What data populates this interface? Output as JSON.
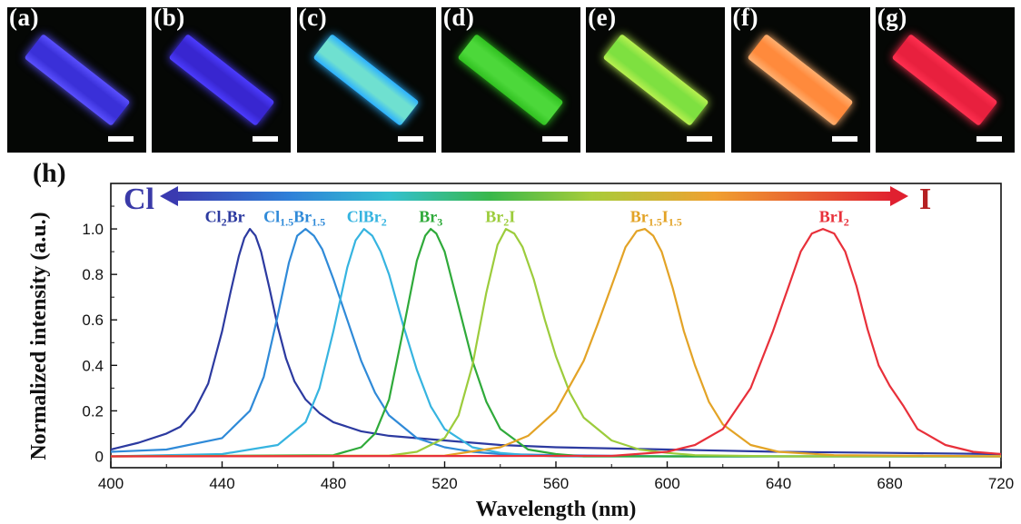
{
  "photo_panels": [
    {
      "label": "(a)",
      "color": "#3a30d8",
      "glow": "#5a50ff"
    },
    {
      "label": "(b)",
      "color": "#3826d0",
      "glow": "#4c3cff"
    },
    {
      "label": "(c)",
      "color": "#6fe0d0",
      "glow": "#2bb0ff"
    },
    {
      "label": "(d)",
      "color": "#4cd83a",
      "glow": "#30c020"
    },
    {
      "label": "(e)",
      "color": "#7ee040",
      "glow": "#b8f050"
    },
    {
      "label": "(f)",
      "color": "#ff8a3c",
      "glow": "#ffb070"
    },
    {
      "label": "(g)",
      "color": "#e8203e",
      "glow": "#ff3050"
    }
  ],
  "chart_panel_label": "(h)",
  "arrow": {
    "left_label": "Cl",
    "right_label": "I",
    "left_color": "#3a3aa8",
    "right_color": "#b52022"
  },
  "chart_data": {
    "type": "line",
    "xlabel": "Wavelength (nm)",
    "ylabel": "Normalized intensity (a.u.)",
    "xlim": [
      400,
      720
    ],
    "ylim": [
      -0.05,
      1.2
    ],
    "xticks": [
      400,
      440,
      480,
      520,
      560,
      600,
      640,
      680,
      720
    ],
    "yticks": [
      0,
      0.2,
      0.4,
      0.6,
      0.8,
      1.0
    ],
    "ytick_labels": [
      "0",
      "0.2",
      "0.4",
      "0.6",
      "0.8",
      "1.0"
    ],
    "grid": false,
    "series": [
      {
        "name": "Cl2Br",
        "label_parts": [
          [
            "Cl",
            ""
          ],
          [
            "2",
            "sub"
          ],
          [
            "Br",
            ""
          ]
        ],
        "color": "#2c3aa0",
        "x": [
          400,
          410,
          420,
          425,
          430,
          435,
          440,
          443,
          446,
          448,
          450,
          452,
          454,
          457,
          460,
          463,
          466,
          470,
          475,
          480,
          490,
          500,
          520,
          540,
          560,
          600,
          640,
          680,
          720
        ],
        "y": [
          0.03,
          0.06,
          0.1,
          0.13,
          0.2,
          0.32,
          0.55,
          0.72,
          0.88,
          0.96,
          1.0,
          0.97,
          0.9,
          0.74,
          0.57,
          0.43,
          0.33,
          0.25,
          0.19,
          0.15,
          0.11,
          0.09,
          0.07,
          0.05,
          0.04,
          0.03,
          0.02,
          0.015,
          0.01
        ]
      },
      {
        "name": "Cl1.5Br1.5",
        "label_parts": [
          [
            "Cl",
            ""
          ],
          [
            "1.5",
            "sub"
          ],
          [
            "Br",
            ""
          ],
          [
            "1.5",
            "sub"
          ]
        ],
        "color": "#2f8ad8",
        "x": [
          400,
          420,
          440,
          450,
          455,
          460,
          464,
          467,
          470,
          473,
          476,
          480,
          485,
          490,
          495,
          500,
          510,
          520,
          530,
          540,
          560,
          600,
          720
        ],
        "y": [
          0.02,
          0.03,
          0.08,
          0.2,
          0.35,
          0.62,
          0.85,
          0.97,
          1.0,
          0.97,
          0.91,
          0.78,
          0.6,
          0.42,
          0.28,
          0.18,
          0.08,
          0.04,
          0.02,
          0.01,
          0.005,
          0.0,
          0.0
        ]
      },
      {
        "name": "ClBr2",
        "label_parts": [
          [
            "ClBr",
            ""
          ],
          [
            "2",
            "sub"
          ]
        ],
        "color": "#36b4e0",
        "x": [
          400,
          440,
          460,
          470,
          475,
          480,
          485,
          488,
          491,
          494,
          497,
          500,
          505,
          510,
          515,
          520,
          530,
          540,
          550,
          560,
          600,
          720
        ],
        "y": [
          0.0,
          0.01,
          0.05,
          0.15,
          0.3,
          0.55,
          0.83,
          0.95,
          1.0,
          0.97,
          0.9,
          0.8,
          0.58,
          0.38,
          0.22,
          0.12,
          0.04,
          0.015,
          0.005,
          0.0,
          0.0,
          0.0
        ]
      },
      {
        "name": "Br3",
        "label_parts": [
          [
            "Br",
            ""
          ],
          [
            "3",
            "sub"
          ]
        ],
        "color": "#2faa3a",
        "x": [
          400,
          480,
          490,
          495,
          500,
          505,
          510,
          513,
          515,
          517,
          520,
          525,
          530,
          535,
          540,
          550,
          560,
          570,
          720
        ],
        "y": [
          0.0,
          0.005,
          0.04,
          0.1,
          0.25,
          0.55,
          0.86,
          0.97,
          1.0,
          0.98,
          0.9,
          0.66,
          0.42,
          0.24,
          0.12,
          0.03,
          0.01,
          0.0,
          0.0
        ]
      },
      {
        "name": "Br2I",
        "label_parts": [
          [
            "Br",
            ""
          ],
          [
            "2",
            "sub"
          ],
          [
            "I",
            ""
          ]
        ],
        "color": "#9ccc3c",
        "x": [
          400,
          500,
          510,
          520,
          525,
          530,
          535,
          539,
          542,
          545,
          548,
          552,
          556,
          560,
          565,
          570,
          580,
          590,
          600,
          610,
          640,
          720
        ],
        "y": [
          0.0,
          0.003,
          0.02,
          0.08,
          0.18,
          0.4,
          0.72,
          0.93,
          1.0,
          0.98,
          0.92,
          0.78,
          0.6,
          0.44,
          0.28,
          0.17,
          0.07,
          0.03,
          0.015,
          0.005,
          0.0,
          0.0
        ]
      },
      {
        "name": "Br1.5I1.5",
        "label_parts": [
          [
            "Br",
            ""
          ],
          [
            "1.5",
            "sub"
          ],
          [
            "I",
            ""
          ],
          [
            "1.5",
            "sub"
          ]
        ],
        "color": "#e3a326",
        "x": [
          400,
          520,
          540,
          550,
          560,
          570,
          575,
          580,
          585,
          589,
          592,
          595,
          598,
          602,
          606,
          610,
          615,
          620,
          630,
          640,
          660,
          720
        ],
        "y": [
          0.0,
          0.003,
          0.04,
          0.09,
          0.2,
          0.42,
          0.58,
          0.75,
          0.92,
          0.99,
          1.0,
          0.97,
          0.9,
          0.74,
          0.55,
          0.4,
          0.24,
          0.14,
          0.05,
          0.02,
          0.005,
          0.0
        ]
      },
      {
        "name": "BrI2",
        "label_parts": [
          [
            "BrI",
            ""
          ],
          [
            "2",
            "sub"
          ]
        ],
        "color": "#e8303a",
        "x": [
          400,
          580,
          600,
          610,
          620,
          630,
          638,
          644,
          648,
          652,
          656,
          660,
          664,
          668,
          672,
          676,
          680,
          685,
          690,
          700,
          710,
          720
        ],
        "y": [
          0.0,
          0.002,
          0.02,
          0.05,
          0.12,
          0.3,
          0.55,
          0.76,
          0.9,
          0.98,
          1.0,
          0.98,
          0.9,
          0.75,
          0.56,
          0.4,
          0.31,
          0.22,
          0.12,
          0.05,
          0.02,
          0.01
        ]
      }
    ],
    "series_label_positions": [
      {
        "x": 441,
        "y": 1.03
      },
      {
        "x": 466,
        "y": 1.03
      },
      {
        "x": 492,
        "y": 1.03
      },
      {
        "x": 515,
        "y": 1.03
      },
      {
        "x": 540,
        "y": 1.03
      },
      {
        "x": 596,
        "y": 1.03
      },
      {
        "x": 660,
        "y": 1.03
      }
    ]
  }
}
